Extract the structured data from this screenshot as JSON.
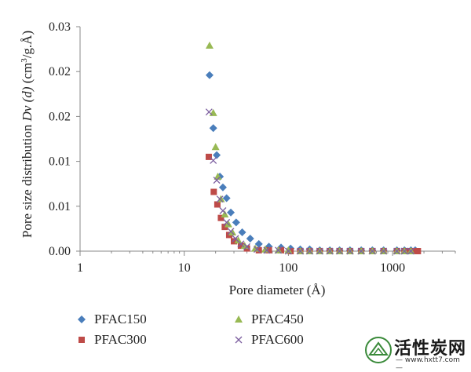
{
  "chart_data": {
    "type": "scatter",
    "x_scale": "log",
    "xlim": [
      1,
      4000
    ],
    "ylim": [
      0,
      0.025
    ],
    "xlabel": "Pore diameter (Å)",
    "ylabel_parts": {
      "prefix": "Pore size distribution ",
      "italic": "Dv (d)",
      "suffix1": " (cm",
      "sup": "3",
      "suffix2": "/g.Å)"
    },
    "x_ticks": [
      {
        "value": 1,
        "label": "1"
      },
      {
        "value": 10,
        "label": "10"
      },
      {
        "value": 100,
        "label": "100"
      },
      {
        "value": 1000,
        "label": "1000"
      }
    ],
    "y_ticks": [
      {
        "value": 0,
        "label": "0.00"
      },
      {
        "value": 0.005,
        "label": "0.01"
      },
      {
        "value": 0.01,
        "label": "0.01"
      },
      {
        "value": 0.015,
        "label": "0.02"
      },
      {
        "value": 0.02,
        "label": "0.02"
      },
      {
        "value": 0.025,
        "label": "0.03"
      }
    ],
    "legend_position": "bottom",
    "series": [
      {
        "name": "PFAC150",
        "color": "#4a7ebb",
        "marker": "diamond",
        "points": [
          [
            17.5,
            0.0196
          ],
          [
            19,
            0.0137
          ],
          [
            20.5,
            0.0107
          ],
          [
            22,
            0.0083
          ],
          [
            23.5,
            0.0071
          ],
          [
            25.5,
            0.0059
          ],
          [
            28,
            0.0043
          ],
          [
            31.5,
            0.0032
          ],
          [
            36,
            0.0021
          ],
          [
            43,
            0.0014
          ],
          [
            52,
            0.0008
          ],
          [
            65,
            0.0005
          ],
          [
            85,
            0.0004
          ],
          [
            105,
            0.0003
          ],
          [
            130,
            0.0002
          ],
          [
            160,
            0.0002
          ],
          [
            200,
            0.0001
          ],
          [
            250,
            0.0001
          ],
          [
            310,
            0.0001
          ],
          [
            390,
            0.0001
          ],
          [
            500,
            0.0001
          ],
          [
            640,
            0.0001
          ],
          [
            820,
            0.0001
          ],
          [
            1100,
            0.0001
          ],
          [
            1300,
            0.0001
          ],
          [
            1500,
            0.0001
          ],
          [
            1650,
            0.0001
          ]
        ]
      },
      {
        "name": "PFAC300",
        "color": "#be4b48",
        "marker": "square",
        "points": [
          [
            17.2,
            0.0105
          ],
          [
            19.2,
            0.0066
          ],
          [
            20.8,
            0.0052
          ],
          [
            22.5,
            0.0037
          ],
          [
            24.5,
            0.0027
          ],
          [
            27,
            0.0018
          ],
          [
            30,
            0.0011
          ],
          [
            35,
            0.0006
          ],
          [
            40,
            0.0003
          ],
          [
            52,
            0.0001
          ],
          [
            65,
            0.0001
          ],
          [
            85,
            0.0001
          ],
          [
            105,
            0
          ],
          [
            130,
            0
          ],
          [
            160,
            0
          ],
          [
            200,
            0
          ],
          [
            250,
            0
          ],
          [
            310,
            0
          ],
          [
            390,
            0
          ],
          [
            500,
            0
          ],
          [
            640,
            0
          ],
          [
            820,
            0
          ],
          [
            1100,
            0
          ],
          [
            1300,
            0
          ],
          [
            1450,
            0
          ],
          [
            1600,
            0
          ],
          [
            1750,
            0
          ]
        ]
      },
      {
        "name": "PFAC450",
        "color": "#98b954",
        "marker": "triangle",
        "points": [
          [
            17.5,
            0.0229
          ],
          [
            19,
            0.0154
          ],
          [
            20,
            0.0116
          ],
          [
            21,
            0.0083
          ],
          [
            22.5,
            0.0058
          ],
          [
            24.5,
            0.0041
          ],
          [
            26.5,
            0.003
          ],
          [
            29,
            0.0021
          ],
          [
            33,
            0.0012
          ],
          [
            38,
            0.0006
          ],
          [
            48,
            0.0003
          ],
          [
            60,
            0.0002
          ],
          [
            80,
            0.0001
          ],
          [
            100,
            0.0001
          ],
          [
            130,
            0
          ],
          [
            160,
            0
          ],
          [
            200,
            0
          ],
          [
            250,
            0
          ],
          [
            310,
            0
          ],
          [
            390,
            0
          ],
          [
            500,
            0
          ],
          [
            640,
            0
          ],
          [
            820,
            0
          ],
          [
            1100,
            0
          ],
          [
            1300,
            0
          ],
          [
            1500,
            0
          ]
        ]
      },
      {
        "name": "PFAC600",
        "color": "#7d60a0",
        "marker": "x",
        "points": [
          [
            17.3,
            0.0155
          ],
          [
            19,
            0.0101
          ],
          [
            20.5,
            0.0079
          ],
          [
            22,
            0.0058
          ],
          [
            23.5,
            0.0045
          ],
          [
            25.5,
            0.0032
          ],
          [
            28,
            0.0022
          ],
          [
            31,
            0.0014
          ],
          [
            35,
            0.0008
          ],
          [
            40,
            0.0005
          ],
          [
            50,
            0.0002
          ],
          [
            62,
            0.0001
          ],
          [
            80,
            0.0001
          ],
          [
            100,
            0
          ],
          [
            130,
            0
          ],
          [
            160,
            0
          ],
          [
            200,
            0
          ],
          [
            250,
            0
          ],
          [
            310,
            0
          ],
          [
            390,
            0
          ],
          [
            500,
            0
          ],
          [
            640,
            0
          ],
          [
            820,
            0
          ],
          [
            1100,
            0
          ],
          [
            1300,
            0
          ],
          [
            1500,
            0
          ]
        ]
      }
    ]
  },
  "watermark": {
    "title": "活性炭网",
    "url": "— www.hxtt7.com —"
  }
}
